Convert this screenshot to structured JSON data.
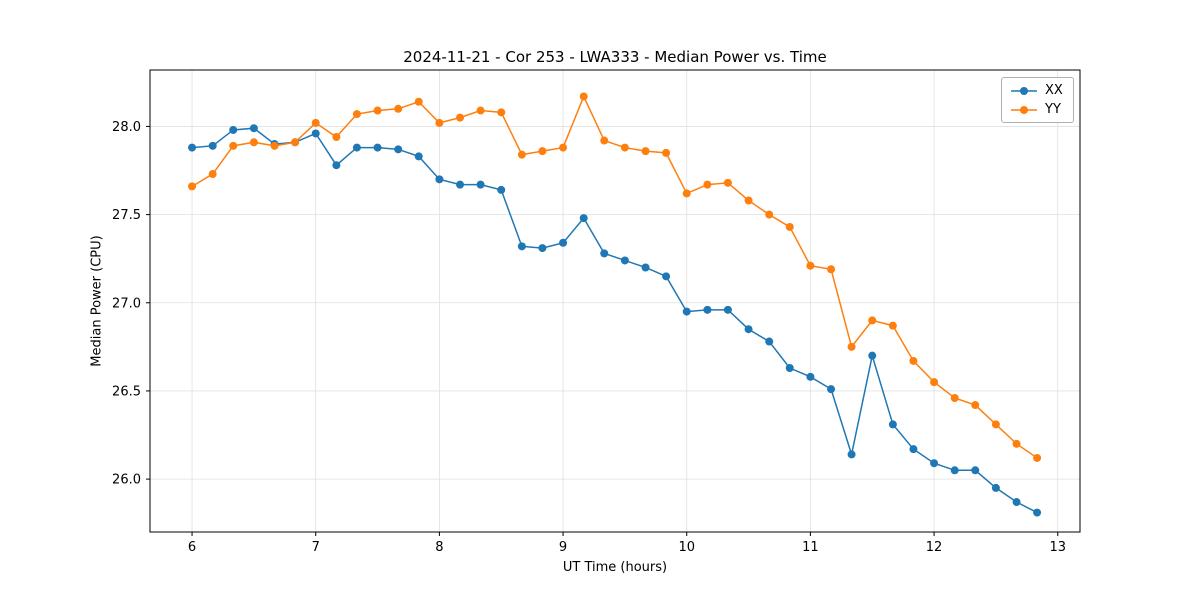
{
  "chart_data": {
    "type": "line",
    "title": "2024-11-21 - Cor 253 - LWA333 - Median Power vs. Time",
    "xlabel": "UT Time (hours)",
    "ylabel": "Median Power (CPU)",
    "xlim": [
      5.66,
      13.18
    ],
    "ylim": [
      25.7,
      28.32
    ],
    "grid": true,
    "legend_position": "upper right",
    "xticks": [
      6,
      7,
      8,
      9,
      10,
      11,
      12,
      13
    ],
    "xtick_labels": [
      "6",
      "7",
      "8",
      "9",
      "10",
      "11",
      "12",
      "13"
    ],
    "yticks": [
      26.0,
      26.5,
      27.0,
      27.5,
      28.0
    ],
    "ytick_labels": [
      "26.0",
      "26.5",
      "27.0",
      "27.5",
      "28.0"
    ],
    "x": [
      6.0,
      6.167,
      6.333,
      6.5,
      6.667,
      6.833,
      7.0,
      7.167,
      7.333,
      7.5,
      7.667,
      7.833,
      8.0,
      8.167,
      8.333,
      8.5,
      8.667,
      8.833,
      9.0,
      9.167,
      9.333,
      9.5,
      9.667,
      9.833,
      10.0,
      10.167,
      10.333,
      10.5,
      10.667,
      10.833,
      11.0,
      11.167,
      11.333,
      11.5,
      11.667,
      11.833,
      12.0,
      12.167,
      12.333,
      12.5,
      12.667,
      12.833
    ],
    "series": [
      {
        "name": "XX",
        "color": "#1f77b4",
        "values": [
          27.88,
          27.89,
          27.98,
          27.99,
          27.9,
          27.91,
          27.96,
          27.78,
          27.88,
          27.88,
          27.87,
          27.83,
          27.7,
          27.67,
          27.67,
          27.64,
          27.32,
          27.31,
          27.34,
          27.48,
          27.28,
          27.24,
          27.2,
          27.15,
          26.95,
          26.96,
          26.96,
          26.85,
          26.78,
          26.63,
          26.58,
          26.51,
          26.14,
          26.7,
          26.31,
          26.17,
          26.09,
          26.05,
          26.05,
          25.95,
          25.87,
          25.81
        ]
      },
      {
        "name": "YY",
        "color": "#ff7f0e",
        "values": [
          27.66,
          27.73,
          27.89,
          27.91,
          27.89,
          27.91,
          28.02,
          27.94,
          28.07,
          28.09,
          28.1,
          28.14,
          28.02,
          28.05,
          28.09,
          28.08,
          27.84,
          27.86,
          27.88,
          28.17,
          27.92,
          27.88,
          27.86,
          27.85,
          27.62,
          27.67,
          27.68,
          27.58,
          27.5,
          27.43,
          27.21,
          27.19,
          26.75,
          26.9,
          26.87,
          26.67,
          26.55,
          26.46,
          26.42,
          26.31,
          26.2,
          26.12
        ]
      }
    ]
  }
}
